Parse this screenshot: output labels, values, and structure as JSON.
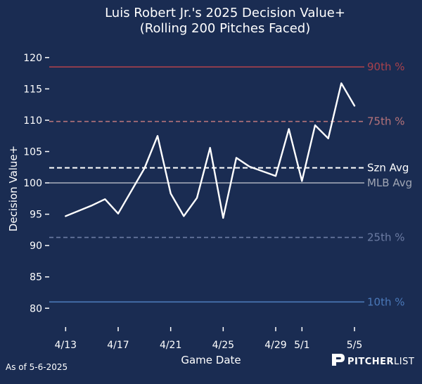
{
  "colors": {
    "background": "#1a2c52",
    "line": "#ffffff",
    "p90": "#a8414c",
    "p75": "#b5737a",
    "szn": "#ffffff",
    "mlb": "#a0a6b4",
    "p25": "#6c7ca3",
    "p10": "#4a78b8"
  },
  "chart_data": {
    "type": "line",
    "title": "Luis Robert Jr.'s 2025 Decision Value+",
    "subtitle": "(Rolling 200 Pitches Faced)",
    "xlabel": "Game Date",
    "ylabel": "Decision Value+",
    "ylim": [
      77,
      122
    ],
    "yticks": [
      80,
      85,
      90,
      95,
      100,
      105,
      110,
      115,
      120
    ],
    "x_range_days": [
      -1.25,
      22.75
    ],
    "xticks": [
      {
        "day": 0,
        "label": "4/13"
      },
      {
        "day": 4,
        "label": "4/17"
      },
      {
        "day": 8,
        "label": "4/21"
      },
      {
        "day": 12,
        "label": "4/25"
      },
      {
        "day": 16,
        "label": "4/29"
      },
      {
        "day": 18,
        "label": "5/1"
      },
      {
        "day": 22,
        "label": "5/5"
      }
    ],
    "series": [
      {
        "name": "Rolling Decision Value+",
        "points": [
          {
            "day": 0,
            "value": 94.7
          },
          {
            "day": 2,
            "value": 96.4
          },
          {
            "day": 3,
            "value": 97.4
          },
          {
            "day": 4,
            "value": 95.1
          },
          {
            "day": 6,
            "value": 102.3
          },
          {
            "day": 7,
            "value": 107.5
          },
          {
            "day": 8,
            "value": 98.3
          },
          {
            "day": 9,
            "value": 94.7
          },
          {
            "day": 10,
            "value": 97.6
          },
          {
            "day": 11,
            "value": 105.6
          },
          {
            "day": 12,
            "value": 94.4
          },
          {
            "day": 13,
            "value": 104.0
          },
          {
            "day": 14,
            "value": 102.6
          },
          {
            "day": 16,
            "value": 101.1
          },
          {
            "day": 17,
            "value": 108.6
          },
          {
            "day": 18,
            "value": 100.3
          },
          {
            "day": 19,
            "value": 109.2
          },
          {
            "day": 20,
            "value": 107.1
          },
          {
            "day": 21,
            "value": 115.9
          },
          {
            "day": 22,
            "value": 112.3
          }
        ]
      }
    ],
    "reference_lines": [
      {
        "key": "p90",
        "label": "90th %",
        "value": 118.5,
        "style": "solid"
      },
      {
        "key": "p75",
        "label": "75th %",
        "value": 109.8,
        "style": "dashed"
      },
      {
        "key": "szn",
        "label": "Szn Avg",
        "value": 102.4,
        "style": "dashed"
      },
      {
        "key": "mlb",
        "label": "MLB Avg",
        "value": 100.0,
        "style": "solid"
      },
      {
        "key": "p25",
        "label": "25th %",
        "value": 91.3,
        "style": "dashed"
      },
      {
        "key": "p10",
        "label": "10th %",
        "value": 81.0,
        "style": "solid"
      }
    ]
  },
  "footer": {
    "as_of": "As of 5-6-2025",
    "brand_bold": "PITCHER",
    "brand_light": "LIST"
  }
}
